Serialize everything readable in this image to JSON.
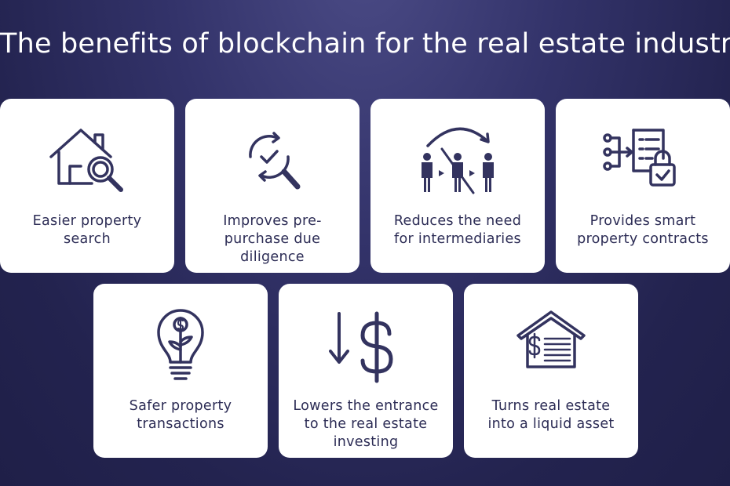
{
  "title": "The benefits of blockchain for the real estate industry",
  "cards": [
    {
      "label_lines": [
        "Easier property",
        "search"
      ],
      "icon": "house-magnifier-icon"
    },
    {
      "label_lines": [
        "Improves pre-",
        "purchase due",
        "diligence"
      ],
      "icon": "check-magnifier-icon"
    },
    {
      "label_lines": [
        "Reduces the need",
        "for intermediaries"
      ],
      "icon": "no-intermediary-icon"
    },
    {
      "label_lines": [
        "Provides smart",
        "property contracts"
      ],
      "icon": "smart-contract-icon"
    },
    {
      "label_lines": [
        "Safer property",
        "transactions"
      ],
      "icon": "lightbulb-dollar-icon"
    },
    {
      "label_lines": [
        "Lowers the entrance",
        "to the real estate",
        "investing"
      ],
      "icon": "down-arrow-dollar-icon"
    },
    {
      "label_lines": [
        "Turns real estate",
        "into a liquid asset"
      ],
      "icon": "house-dollar-icon"
    }
  ],
  "colors": {
    "background": "#2a2a5c",
    "card": "#ffffff",
    "icon": "#33335f",
    "text": "#2c2c55"
  }
}
